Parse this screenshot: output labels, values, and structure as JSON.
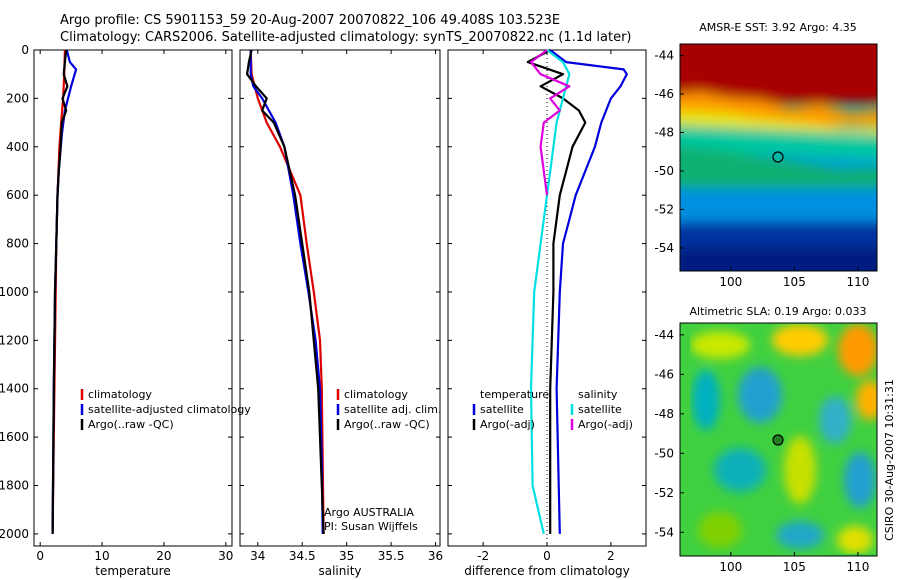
{
  "header": {
    "line1": "Argo profile: CS 5901153_59 20-Aug-2007 20070822_106 49.408S 103.523E",
    "line2": "Climatology: CARS2006. Satellite-adjusted climatology: synTS_20070822.nc (1.1d later)"
  },
  "chart_data": [
    {
      "type": "line",
      "panel": "temperature",
      "xlabel": "temperature",
      "ylabel": "",
      "xlim": [
        -1,
        31
      ],
      "ylim": [
        2050,
        0
      ],
      "x_ticks": [
        "0",
        "10",
        "20",
        "30"
      ],
      "y_ticks": [
        "0",
        "200",
        "400",
        "600",
        "800",
        "1000",
        "1200",
        "1400",
        "1600",
        "1800",
        "2000"
      ],
      "legend": [
        "climatology",
        "satellite-adjusted climatology",
        "Argo(..raw -QC)"
      ],
      "colors": [
        "#dd0000",
        "#0000dd",
        "#000000"
      ],
      "series": [
        {
          "name": "climatology",
          "y": [
            0,
            100,
            200,
            300,
            400,
            600,
            800,
            1000,
            1400,
            2000
          ],
          "x": [
            4.0,
            3.9,
            3.7,
            3.4,
            3.1,
            2.8,
            2.6,
            2.5,
            2.3,
            2.0
          ]
        },
        {
          "name": "satellite-adjusted climatology",
          "y": [
            0,
            50,
            80,
            150,
            250,
            350,
            500,
            600,
            800,
            1000,
            1400,
            2000
          ],
          "x": [
            4.3,
            4.8,
            5.8,
            5.0,
            4.0,
            3.5,
            3.0,
            2.8,
            2.6,
            2.4,
            2.2,
            2.0
          ]
        },
        {
          "name": "Argo(..raw -QC)",
          "y": [
            0,
            50,
            100,
            150,
            200,
            250,
            300,
            400,
            500,
            600,
            800,
            1000,
            1400,
            2000
          ],
          "x": [
            4.2,
            4.0,
            3.8,
            4.4,
            3.6,
            4.2,
            3.5,
            3.3,
            3.0,
            2.8,
            2.6,
            2.4,
            2.2,
            2.0
          ]
        }
      ]
    },
    {
      "type": "line",
      "panel": "salinity",
      "xlabel": "salinity",
      "ylabel": "",
      "xlim": [
        33.8,
        36.05
      ],
      "ylim": [
        2050,
        0
      ],
      "x_ticks": [
        "34",
        "34.5",
        "35",
        "35.5",
        "36"
      ],
      "legend": [
        "climatology",
        "satellite adj. clim.",
        "Argo(..raw -QC)"
      ],
      "colors": [
        "#dd0000",
        "#0000dd",
        "#000000"
      ],
      "annotations": [
        "Argo AUSTRALIA",
        "PI: Susan Wijffels"
      ],
      "series": [
        {
          "name": "climatology",
          "y": [
            0,
            100,
            200,
            300,
            400,
            600,
            800,
            1000,
            1200,
            1400,
            1700,
            2000
          ],
          "x": [
            33.92,
            33.93,
            34.0,
            34.1,
            34.25,
            34.48,
            34.55,
            34.63,
            34.7,
            34.72,
            34.73,
            34.74
          ]
        },
        {
          "name": "satellite adj. clim.",
          "y": [
            0,
            100,
            150,
            200,
            300,
            400,
            600,
            800,
            1000,
            1200,
            1400,
            1700,
            2000
          ],
          "x": [
            33.92,
            33.92,
            33.95,
            34.05,
            34.2,
            34.3,
            34.4,
            34.48,
            34.57,
            34.65,
            34.7,
            34.72,
            34.73
          ]
        },
        {
          "name": "Argo(..raw -QC)",
          "y": [
            0,
            50,
            100,
            150,
            200,
            250,
            300,
            400,
            600,
            800,
            1000,
            1400,
            2000
          ],
          "x": [
            33.93,
            33.9,
            33.88,
            33.98,
            34.1,
            34.05,
            34.18,
            34.3,
            34.42,
            34.5,
            34.58,
            34.68,
            34.74
          ]
        }
      ]
    },
    {
      "type": "line",
      "panel": "difference",
      "xlabel": "difference from climatology",
      "ylabel": "",
      "xlim": [
        -3.1,
        3.1
      ],
      "ylim": [
        2050,
        0
      ],
      "x_ticks": [
        "-2",
        "0",
        "2"
      ],
      "legend_groups": [
        {
          "title": "temperature",
          "items": [
            "satellite",
            "Argo(-adj)"
          ],
          "colors": [
            "#0000dd",
            "#000000"
          ]
        },
        {
          "title": "salinity",
          "items": [
            "satellite",
            "Argo(-adj)"
          ],
          "colors": [
            "#00e0e0",
            "#dd00dd"
          ]
        }
      ],
      "series": [
        {
          "name": "temperature satellite",
          "y": [
            0,
            50,
            80,
            100,
            150,
            200,
            300,
            400,
            500,
            600,
            700,
            800,
            1000,
            1400,
            2000
          ],
          "x": [
            0.1,
            0.6,
            2.4,
            2.5,
            2.3,
            2.0,
            1.7,
            1.5,
            1.2,
            0.9,
            0.7,
            0.5,
            0.4,
            0.3,
            0.4
          ]
        },
        {
          "name": "temperature Argo(-adj)",
          "y": [
            0,
            50,
            100,
            150,
            200,
            250,
            300,
            400,
            500,
            600,
            800,
            1000,
            1400,
            2000
          ],
          "x": [
            0.1,
            -0.6,
            0.5,
            -0.2,
            0.5,
            1.0,
            1.2,
            0.8,
            0.6,
            0.4,
            0.2,
            0.2,
            0.1,
            0.1
          ]
        },
        {
          "name": "salinity satellite",
          "y": [
            0,
            50,
            100,
            200,
            300,
            400,
            600,
            800,
            1000,
            1400,
            1800,
            2000
          ],
          "x": [
            0.0,
            0.5,
            0.7,
            0.5,
            0.3,
            0.2,
            0.0,
            -0.2,
            -0.4,
            -0.5,
            -0.45,
            -0.1
          ]
        },
        {
          "name": "salinity Argo(-adj)",
          "y": [
            0,
            50,
            100,
            150,
            200,
            250,
            300,
            400,
            500,
            600
          ],
          "x": [
            0.0,
            -0.5,
            -0.2,
            0.7,
            0.1,
            0.4,
            -0.1,
            -0.2,
            -0.1,
            0.0
          ]
        }
      ]
    }
  ],
  "maps": [
    {
      "title": "AMSR-E SST: 3.92 Argo: 4.35",
      "x_ticks": [
        "100",
        "105",
        "110"
      ],
      "y_ticks": [
        "-44",
        "-46",
        "-48",
        "-50",
        "-52",
        "-54"
      ],
      "xlim": [
        96,
        111.5
      ],
      "ylim": [
        -55.2,
        -43.4
      ],
      "marker": {
        "lon": 103.5,
        "lat": -49.4
      },
      "colorscale": "SST (jet)"
    },
    {
      "title": "Altimetric SLA: 0.19 Argo: 0.033",
      "x_ticks": [
        "100",
        "105",
        "110"
      ],
      "y_ticks": [
        "-44",
        "-46",
        "-48",
        "-50",
        "-52",
        "-54"
      ],
      "xlim": [
        96,
        111.5
      ],
      "ylim": [
        -55.2,
        -43.4
      ],
      "marker": {
        "lon": 103.5,
        "lat": -49.4
      },
      "colorscale": "SLA (jet)"
    }
  ],
  "side_label": "CSIRO 30-Aug-2007 10:31:31"
}
